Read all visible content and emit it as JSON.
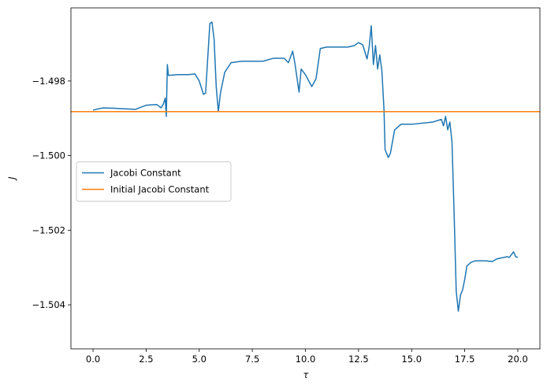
{
  "chart_data": {
    "type": "line",
    "xlabel": "τ",
    "ylabel": "J",
    "xlim": [
      -1.04,
      21.04
    ],
    "ylim": [
      -1.50518,
      -1.49604
    ],
    "xticks": [
      {
        "value": 0,
        "label": "0.0"
      },
      2.5,
      {
        "value": 5,
        "label": "5.0"
      },
      7.5,
      {
        "value": 10,
        "label": "10.0"
      },
      12.5,
      {
        "value": 15,
        "label": "15.0"
      },
      17.5,
      {
        "value": 20,
        "label": "20.0"
      }
    ],
    "yticks": [
      {
        "value": -1.504,
        "label": "−1.504"
      },
      {
        "value": -1.502,
        "label": "−1.502"
      },
      {
        "value": -1.5,
        "label": "−1.500"
      },
      {
        "value": -1.498,
        "label": "−1.498"
      }
    ],
    "legend": "center left",
    "series": [
      {
        "name": "Jacobi Constant",
        "color": "#1f77b4",
        "x": [
          0,
          0.3,
          0.5,
          1.0,
          2.0,
          2.5,
          3.0,
          3.2,
          3.3,
          3.4,
          3.45,
          3.5,
          3.55,
          4.0,
          4.5,
          4.8,
          5.0,
          5.2,
          5.3,
          5.5,
          5.6,
          5.7,
          5.8,
          5.9,
          6.0,
          6.2,
          6.5,
          7.0,
          7.5,
          8.0,
          8.5,
          9.0,
          9.2,
          9.4,
          9.5,
          9.7,
          9.8,
          10.0,
          10.3,
          10.5,
          10.7,
          11.0,
          12.0,
          12.3,
          12.5,
          12.7,
          12.9,
          13.0,
          13.1,
          13.2,
          13.3,
          13.4,
          13.5,
          13.6,
          13.7,
          13.75,
          13.9,
          14.0,
          14.2,
          14.5,
          15.0,
          16.0,
          16.4,
          16.5,
          16.6,
          16.7,
          16.8,
          16.9,
          17.0,
          17.1,
          17.2,
          17.3,
          17.4,
          17.5,
          17.6,
          17.8,
          18.0,
          18.5,
          18.8,
          19.0,
          19.5,
          19.6,
          19.8,
          19.9,
          20.0
        ],
        "values": [
          -1.49878,
          -1.49874,
          -1.49872,
          -1.49873,
          -1.49876,
          -1.49865,
          -1.49863,
          -1.49872,
          -1.49863,
          -1.49846,
          -1.49895,
          -1.49756,
          -1.49785,
          -1.49783,
          -1.49783,
          -1.49781,
          -1.498,
          -1.49836,
          -1.49832,
          -1.49646,
          -1.49642,
          -1.49688,
          -1.49815,
          -1.49882,
          -1.49832,
          -1.49777,
          -1.49751,
          -1.49747,
          -1.49747,
          -1.49747,
          -1.49739,
          -1.49739,
          -1.49751,
          -1.4972,
          -1.49751,
          -1.4983,
          -1.49768,
          -1.49783,
          -1.49815,
          -1.49794,
          -1.49713,
          -1.49709,
          -1.49709,
          -1.49705,
          -1.49697,
          -1.49703,
          -1.49741,
          -1.49709,
          -1.49652,
          -1.49756,
          -1.49705,
          -1.49768,
          -1.4973,
          -1.49773,
          -1.49878,
          -1.49984,
          -1.50005,
          -1.49994,
          -1.49931,
          -1.49916,
          -1.49916,
          -1.4991,
          -1.49903,
          -1.4992,
          -1.49895,
          -1.49931,
          -1.4991,
          -1.49963,
          -1.50153,
          -1.50364,
          -1.50417,
          -1.50374,
          -1.5036,
          -1.50332,
          -1.50296,
          -1.50286,
          -1.50282,
          -1.50282,
          -1.50284,
          -1.50277,
          -1.50271,
          -1.50273,
          -1.50258,
          -1.50271,
          -1.50273
        ]
      },
      {
        "name": "Initial Jacobi Constant",
        "color": "#ff7f0e",
        "hline": -1.49882
      }
    ]
  }
}
